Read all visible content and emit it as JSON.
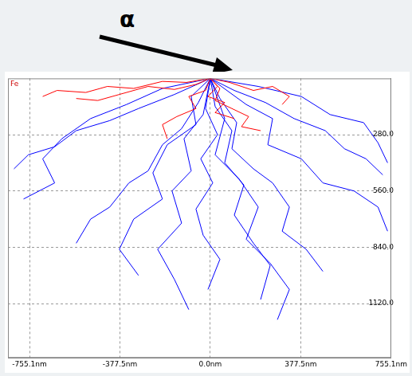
{
  "chart_data": {
    "type": "line",
    "title": "Fe",
    "annotation": "α",
    "marker": "none",
    "grid": true,
    "xlim": [
      -845,
      755.1
    ],
    "xticks": [
      {
        "value": -755.1,
        "label": "-755.1nm"
      },
      {
        "value": -377.5,
        "label": "-377.5nm"
      },
      {
        "value": 0,
        "label": "0.0nm"
      },
      {
        "value": 377.5,
        "label": "377.5nm"
      },
      {
        "value": 755.1,
        "label": "755.1nm"
      }
    ],
    "ylim": [
      0,
      1390
    ],
    "yticks": [
      {
        "value": 280,
        "label": "280.0"
      },
      {
        "value": 560,
        "label": "560.0"
      },
      {
        "value": 840,
        "label": "840.0"
      },
      {
        "value": 1120,
        "label": "1120.0"
      }
    ],
    "series": [
      {
        "color": "#0000ff",
        "x": [
          0,
          -50,
          -120,
          -200,
          -260,
          -340,
          -420,
          -500,
          -560
        ],
        "y": [
          0,
          120,
          250,
          330,
          460,
          520,
          640,
          700,
          820
        ]
      },
      {
        "color": "#0000ff",
        "x": [
          0,
          40,
          110,
          90,
          180,
          260,
          330,
          300,
          400,
          470
        ],
        "y": [
          0,
          100,
          220,
          350,
          450,
          520,
          640,
          760,
          850,
          960
        ]
      },
      {
        "color": "#0000ff",
        "x": [
          0,
          -20,
          30,
          -40,
          10,
          -60,
          -30,
          40,
          -10
        ],
        "y": [
          0,
          150,
          280,
          400,
          520,
          650,
          780,
          900,
          1050
        ]
      },
      {
        "color": "#0000ff",
        "x": [
          0,
          100,
          230,
          350,
          480,
          560,
          650,
          720
        ],
        "y": [
          0,
          60,
          120,
          200,
          260,
          350,
          400,
          480
        ]
      },
      {
        "color": "#0000ff",
        "x": [
          0,
          -150,
          -300,
          -420,
          -560,
          -650,
          -760,
          -820
        ],
        "y": [
          0,
          80,
          150,
          210,
          260,
          340,
          380,
          450
        ]
      },
      {
        "color": "#0000ff",
        "x": [
          0,
          60,
          20,
          120,
          200,
          150,
          250,
          330,
          280
        ],
        "y": [
          0,
          200,
          380,
          500,
          640,
          800,
          920,
          1050,
          1200
        ]
      },
      {
        "color": "#0000ff",
        "x": [
          0,
          -80,
          -60,
          -180,
          -240,
          -200,
          -320,
          -380,
          -300
        ],
        "y": [
          0,
          90,
          230,
          330,
          470,
          600,
          700,
          850,
          980
        ]
      },
      {
        "color": "#0000ff",
        "x": [
          0,
          150,
          260,
          240,
          380,
          470,
          600,
          700,
          740
        ],
        "y": [
          0,
          130,
          200,
          330,
          400,
          520,
          560,
          640,
          760
        ]
      },
      {
        "color": "#0000ff",
        "x": [
          0,
          -30,
          -110,
          -80,
          -160,
          -120,
          -220,
          -150,
          -90
        ],
        "y": [
          0,
          180,
          300,
          460,
          560,
          720,
          850,
          1000,
          1150
        ]
      },
      {
        "color": "#0000ff",
        "x": [
          0,
          20,
          90,
          60,
          140,
          100,
          180,
          250,
          210
        ],
        "y": [
          0,
          140,
          260,
          420,
          530,
          680,
          820,
          930,
          1100
        ]
      },
      {
        "color": "#0000ff",
        "x": [
          0,
          -200,
          -350,
          -500,
          -620,
          -700,
          -650,
          -780
        ],
        "y": [
          0,
          50,
          130,
          200,
          300,
          400,
          520,
          600
        ]
      },
      {
        "color": "#0000ff",
        "x": [
          0,
          200,
          380,
          500,
          640,
          700,
          740
        ],
        "y": [
          0,
          40,
          90,
          180,
          220,
          320,
          420
        ]
      },
      {
        "color": "#ff0000",
        "x": [
          0,
          -60,
          -150,
          -260,
          -380,
          -470,
          -560
        ],
        "y": [
          0,
          30,
          55,
          40,
          80,
          110,
          100
        ]
      },
      {
        "color": "#ff0000",
        "x": [
          0,
          40,
          20,
          90,
          160,
          130,
          210
        ],
        "y": [
          0,
          50,
          110,
          150,
          190,
          240,
          260
        ]
      },
      {
        "color": "#ff0000",
        "x": [
          0,
          -20,
          -90,
          -60,
          -140,
          -200,
          -180
        ],
        "y": [
          0,
          60,
          90,
          150,
          190,
          230,
          300
        ]
      },
      {
        "color": "#ff0000",
        "x": [
          0,
          80,
          180,
          260,
          330,
          300
        ],
        "y": [
          0,
          20,
          60,
          40,
          90,
          130
        ]
      },
      {
        "color": "#ff0000",
        "x": [
          0,
          -100,
          -200,
          -320,
          -430,
          -520,
          -640,
          -700
        ],
        "y": [
          0,
          20,
          15,
          50,
          40,
          70,
          60,
          90
        ]
      },
      {
        "color": "#ff0000",
        "x": [
          0,
          30,
          -10,
          60,
          20,
          100
        ],
        "y": [
          0,
          40,
          90,
          120,
          170,
          200
        ]
      }
    ]
  }
}
